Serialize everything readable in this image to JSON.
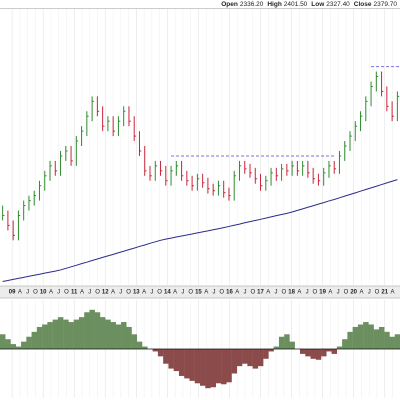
{
  "chart_data": {
    "type": "ohlc",
    "header": [
      {
        "label": "Open",
        "value": "2336.20"
      },
      {
        "label": "High",
        "value": "2401.50"
      },
      {
        "label": "Low",
        "value": "2327.40"
      },
      {
        "label": "Close",
        "value": "2379.70"
      }
    ],
    "up_color": "#2e8b2e",
    "down_color": "#c8243c",
    "ma_color": "#2b2b8c",
    "level_color": "#7b6fe0",
    "osc_up_color": "#6b8f5e",
    "osc_down_color": "#8c4b4b",
    "ylim": [
      700,
      2362
    ],
    "xlim": [
      -0.5,
      75.5
    ],
    "osc_ylim": [
      -100,
      100
    ],
    "grid": true,
    "high": [
      1180,
      1150,
      1090,
      1150,
      1210,
      1240,
      1270,
      1330,
      1390,
      1450,
      1450,
      1510,
      1540,
      1540,
      1600,
      1660,
      1750,
      1840,
      1840,
      1780,
      1720,
      1720,
      1720,
      1780,
      1780,
      1720,
      1630,
      1540,
      1420,
      1450,
      1450,
      1420,
      1420,
      1450,
      1450,
      1390,
      1360,
      1372,
      1372,
      1348,
      1312,
      1330,
      1330,
      1288,
      1390,
      1450,
      1450,
      1432,
      1408,
      1372,
      1360,
      1408,
      1408,
      1432,
      1432,
      1450,
      1450,
      1450,
      1450,
      1408,
      1372,
      1408,
      1450,
      1450,
      1510,
      1570,
      1630,
      1690,
      1750,
      1840,
      1930,
      1990,
      1990,
      1900,
      1810,
      1870
    ],
    "low": [
      1090,
      1030,
      970,
      970,
      1090,
      1150,
      1180,
      1210,
      1270,
      1330,
      1360,
      1360,
      1450,
      1420,
      1420,
      1540,
      1600,
      1690,
      1720,
      1630,
      1630,
      1600,
      1600,
      1660,
      1660,
      1570,
      1480,
      1360,
      1330,
      1330,
      1360,
      1300,
      1300,
      1360,
      1330,
      1300,
      1270,
      1270,
      1288,
      1252,
      1240,
      1240,
      1228,
      1210,
      1210,
      1330,
      1372,
      1348,
      1312,
      1270,
      1270,
      1300,
      1330,
      1330,
      1360,
      1360,
      1360,
      1360,
      1348,
      1312,
      1300,
      1300,
      1348,
      1372,
      1372,
      1450,
      1510,
      1570,
      1630,
      1690,
      1780,
      1870,
      1840,
      1750,
      1690,
      1690
    ],
    "close": [
      1120,
      1060,
      1000,
      1120,
      1180,
      1210,
      1240,
      1300,
      1360,
      1420,
      1390,
      1480,
      1510,
      1450,
      1570,
      1630,
      1720,
      1810,
      1750,
      1660,
      1690,
      1630,
      1690,
      1750,
      1690,
      1600,
      1510,
      1390,
      1360,
      1420,
      1390,
      1330,
      1390,
      1420,
      1360,
      1330,
      1300,
      1342,
      1318,
      1282,
      1270,
      1300,
      1258,
      1240,
      1360,
      1420,
      1402,
      1378,
      1342,
      1300,
      1330,
      1378,
      1360,
      1402,
      1390,
      1420,
      1390,
      1420,
      1378,
      1342,
      1330,
      1378,
      1420,
      1402,
      1480,
      1540,
      1600,
      1660,
      1720,
      1810,
      1900,
      1960,
      1870,
      1780,
      1720,
      1840
    ],
    "ma": [
      721,
      727,
      734,
      740,
      746,
      753,
      759,
      765,
      772,
      778,
      784,
      791,
      800,
      810,
      819,
      829,
      838,
      848,
      857,
      867,
      876,
      885,
      895,
      904,
      914,
      923,
      933,
      942,
      952,
      961,
      970,
      977,
      983,
      990,
      996,
      1002,
      1008,
      1015,
      1021,
      1027,
      1034,
      1040,
      1047,
      1054,
      1061,
      1068,
      1076,
      1083,
      1090,
      1097,
      1104,
      1112,
      1119,
      1126,
      1133,
      1141,
      1151,
      1160,
      1170,
      1179,
      1189,
      1198,
      1208,
      1217,
      1227,
      1237,
      1247,
      1257,
      1267,
      1277,
      1287,
      1297,
      1307,
      1317,
      1327,
      1337
    ],
    "levels": [
      {
        "value": 1480,
        "from": 32,
        "to": 63
      },
      {
        "value": 2020,
        "from": 70,
        "to": 75.5
      }
    ],
    "oscillator": [
      30,
      20,
      10,
      5,
      15,
      25,
      35,
      45,
      50,
      55,
      60,
      65,
      60,
      55,
      60,
      65,
      75,
      80,
      75,
      65,
      60,
      55,
      50,
      55,
      45,
      30,
      15,
      5,
      0,
      -5,
      -15,
      -30,
      -40,
      -45,
      -55,
      -60,
      -65,
      -70,
      -75,
      -80,
      -78,
      -70,
      -72,
      -68,
      -50,
      -35,
      -30,
      -35,
      -40,
      -35,
      -20,
      -5,
      5,
      25,
      30,
      15,
      0,
      -10,
      -15,
      -20,
      -22,
      -15,
      -5,
      -10,
      5,
      20,
      35,
      45,
      50,
      55,
      50,
      40,
      45,
      35,
      25,
      30
    ],
    "xticks": [
      {
        "value": 1.8,
        "label": "09"
      },
      {
        "value": 3.28,
        "label": "A"
      },
      {
        "value": 4.75,
        "label": "J"
      },
      {
        "value": 6.23,
        "label": "O"
      },
      {
        "value": 7.7,
        "label": "10"
      },
      {
        "value": 9.18,
        "label": "A"
      },
      {
        "value": 10.65,
        "label": "J"
      },
      {
        "value": 12.13,
        "label": "O"
      },
      {
        "value": 13.6,
        "label": "11"
      },
      {
        "value": 15.08,
        "label": "A"
      },
      {
        "value": 16.55,
        "label": "J"
      },
      {
        "value": 18.03,
        "label": "O"
      },
      {
        "value": 19.5,
        "label": "12"
      },
      {
        "value": 20.98,
        "label": "A"
      },
      {
        "value": 22.45,
        "label": "J"
      },
      {
        "value": 23.93,
        "label": "O"
      },
      {
        "value": 25.4,
        "label": "13"
      },
      {
        "value": 26.88,
        "label": "A"
      },
      {
        "value": 28.35,
        "label": "J"
      },
      {
        "value": 29.83,
        "label": "O"
      },
      {
        "value": 31.3,
        "label": "14"
      },
      {
        "value": 32.78,
        "label": "A"
      },
      {
        "value": 34.25,
        "label": "J"
      },
      {
        "value": 35.73,
        "label": "O"
      },
      {
        "value": 37.2,
        "label": "15"
      },
      {
        "value": 38.68,
        "label": "A"
      },
      {
        "value": 40.15,
        "label": "J"
      },
      {
        "value": 41.63,
        "label": "O"
      },
      {
        "value": 43.1,
        "label": "16"
      },
      {
        "value": 44.58,
        "label": "A"
      },
      {
        "value": 46.05,
        "label": "J"
      },
      {
        "value": 47.53,
        "label": "O"
      },
      {
        "value": 49.0,
        "label": "17"
      },
      {
        "value": 50.48,
        "label": "A"
      },
      {
        "value": 51.95,
        "label": "J"
      },
      {
        "value": 53.43,
        "label": "O"
      },
      {
        "value": 54.9,
        "label": "18"
      },
      {
        "value": 56.38,
        "label": "A"
      },
      {
        "value": 57.85,
        "label": "J"
      },
      {
        "value": 59.33,
        "label": "O"
      },
      {
        "value": 60.8,
        "label": "19"
      },
      {
        "value": 62.28,
        "label": "A"
      },
      {
        "value": 63.75,
        "label": "J"
      },
      {
        "value": 65.23,
        "label": "O"
      },
      {
        "value": 66.7,
        "label": "20"
      },
      {
        "value": 68.18,
        "label": "A"
      },
      {
        "value": 69.65,
        "label": "J"
      },
      {
        "value": 71.13,
        "label": "O"
      },
      {
        "value": 72.6,
        "label": "21"
      },
      {
        "value": 74.08,
        "label": "A"
      }
    ]
  }
}
